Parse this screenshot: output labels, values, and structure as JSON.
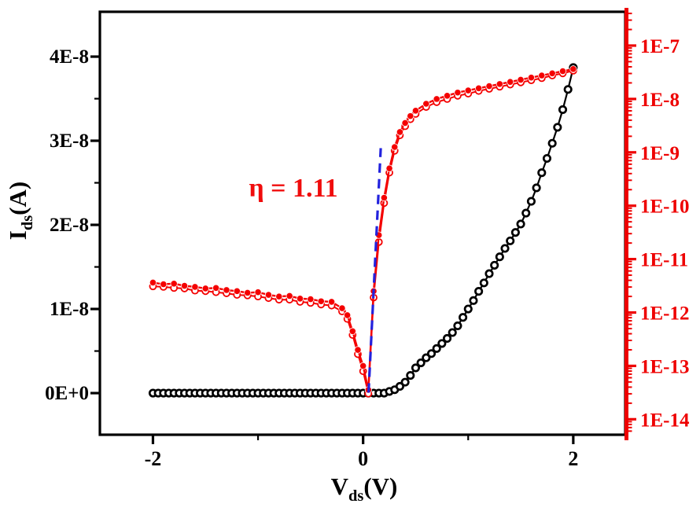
{
  "figure": {
    "background": "#ffffff"
  },
  "colors": {
    "frame": "#000000",
    "black_series": "#000000",
    "red_axis": "#ee0000",
    "red_series": "#f40000",
    "blue_fit": "#2222dd",
    "annotation_red": "#f00c0c"
  },
  "chart_data": {
    "type": "line",
    "title": "",
    "xlabel": {
      "pre": "V",
      "sub": "ds",
      "post": "(V)"
    },
    "ylabel_left": {
      "pre": "I",
      "sub": "ds",
      "post": "(A)"
    },
    "annotation": {
      "text": "η = 1.11"
    },
    "axes": {
      "x": {
        "range": [
          -2.505,
          2.495
        ],
        "major_ticks": [
          -2,
          0,
          2
        ],
        "major_labels": [
          "-2",
          "0",
          "2"
        ],
        "minor_ticks": [
          -1,
          1
        ]
      },
      "y_left": {
        "unit": "A (values in 1e-8)",
        "range": [
          -0.495,
          4.533
        ],
        "major_ticks": [
          0,
          1,
          2,
          3,
          4
        ],
        "major_labels": [
          "0E+0",
          "1E-8",
          "2E-8",
          "3E-8",
          "4E-8"
        ],
        "minor_ticks": [
          0.5,
          1.5,
          2.5,
          3.5
        ]
      },
      "y_right": {
        "scale": "log10",
        "unit": "A (log10 values)",
        "range": [
          -14.29,
          -6.367
        ],
        "major_ticks": [
          -7,
          -8,
          -9,
          -10,
          -11,
          -12,
          -13,
          -14
        ],
        "major_labels": [
          "1E-7",
          "1E-8",
          "1E-9",
          "1E-10",
          "1E-11",
          "1E-12",
          "1E-13",
          "1E-14"
        ],
        "minor_decades": [
          -15,
          -14,
          -13,
          -12,
          -11,
          -10,
          -9,
          -8,
          -7
        ]
      }
    },
    "series": [
      {
        "name": "Ids-linear-black",
        "axis": "left",
        "marker": "open-circle",
        "points": [
          [
            -2.0,
            0
          ],
          [
            -1.95,
            0
          ],
          [
            -1.9,
            0
          ],
          [
            -1.85,
            0
          ],
          [
            -1.8,
            0
          ],
          [
            -1.75,
            0
          ],
          [
            -1.7,
            0
          ],
          [
            -1.65,
            0
          ],
          [
            -1.6,
            0
          ],
          [
            -1.55,
            0
          ],
          [
            -1.5,
            0
          ],
          [
            -1.45,
            0
          ],
          [
            -1.4,
            0
          ],
          [
            -1.35,
            0
          ],
          [
            -1.3,
            0
          ],
          [
            -1.25,
            0
          ],
          [
            -1.2,
            0
          ],
          [
            -1.15,
            0
          ],
          [
            -1.1,
            0
          ],
          [
            -1.05,
            0
          ],
          [
            -1.0,
            0
          ],
          [
            -0.95,
            0
          ],
          [
            -0.9,
            0
          ],
          [
            -0.85,
            0
          ],
          [
            -0.8,
            0
          ],
          [
            -0.75,
            0
          ],
          [
            -0.7,
            0
          ],
          [
            -0.65,
            0
          ],
          [
            -0.6,
            0
          ],
          [
            -0.55,
            0
          ],
          [
            -0.5,
            0
          ],
          [
            -0.45,
            0
          ],
          [
            -0.4,
            0
          ],
          [
            -0.35,
            0
          ],
          [
            -0.3,
            0
          ],
          [
            -0.25,
            0
          ],
          [
            -0.2,
            0
          ],
          [
            -0.15,
            0
          ],
          [
            -0.1,
            0
          ],
          [
            -0.05,
            0
          ],
          [
            0.0,
            0
          ],
          [
            0.05,
            0
          ],
          [
            0.1,
            0
          ],
          [
            0.15,
            0
          ],
          [
            0.2,
            0
          ],
          [
            0.25,
            0.02
          ],
          [
            0.3,
            0.04
          ],
          [
            0.35,
            0.08
          ],
          [
            0.4,
            0.13
          ],
          [
            0.45,
            0.21
          ],
          [
            0.5,
            0.3
          ],
          [
            0.55,
            0.36
          ],
          [
            0.6,
            0.42
          ],
          [
            0.65,
            0.47
          ],
          [
            0.7,
            0.53
          ],
          [
            0.75,
            0.59
          ],
          [
            0.8,
            0.65
          ],
          [
            0.85,
            0.72
          ],
          [
            0.9,
            0.8
          ],
          [
            0.95,
            0.9
          ],
          [
            1.0,
            1.0
          ],
          [
            1.05,
            1.1
          ],
          [
            1.1,
            1.21
          ],
          [
            1.15,
            1.31
          ],
          [
            1.2,
            1.42
          ],
          [
            1.25,
            1.52
          ],
          [
            1.3,
            1.62
          ],
          [
            1.35,
            1.72
          ],
          [
            1.4,
            1.81
          ],
          [
            1.45,
            1.91
          ],
          [
            1.5,
            2.01
          ],
          [
            1.55,
            2.14
          ],
          [
            1.6,
            2.28
          ],
          [
            1.65,
            2.44
          ],
          [
            1.7,
            2.62
          ],
          [
            1.75,
            2.79
          ],
          [
            1.8,
            2.97
          ],
          [
            1.85,
            3.16
          ],
          [
            1.9,
            3.37
          ],
          [
            1.95,
            3.61
          ],
          [
            2.0,
            3.87
          ]
        ]
      },
      {
        "name": "abs-Ids-log-red-open",
        "axis": "right",
        "marker": "open-circle",
        "points": [
          [
            -2.0,
            -11.51
          ],
          [
            -1.9,
            -11.52
          ],
          [
            -1.8,
            -11.54
          ],
          [
            -1.7,
            -11.55
          ],
          [
            -1.6,
            -11.59
          ],
          [
            -1.5,
            -11.6
          ],
          [
            -1.4,
            -11.62
          ],
          [
            -1.3,
            -11.64
          ],
          [
            -1.2,
            -11.67
          ],
          [
            -1.1,
            -11.68
          ],
          [
            -1.0,
            -11.7
          ],
          [
            -0.9,
            -11.73
          ],
          [
            -0.8,
            -11.76
          ],
          [
            -0.7,
            -11.76
          ],
          [
            -0.6,
            -11.8
          ],
          [
            -0.5,
            -11.82
          ],
          [
            -0.4,
            -11.85
          ],
          [
            -0.3,
            -11.87
          ],
          [
            -0.2,
            -11.98
          ],
          [
            -0.15,
            -12.12
          ],
          [
            -0.1,
            -12.42
          ],
          [
            -0.05,
            -12.78
          ],
          [
            0.0,
            -13.1
          ],
          [
            0.05,
            -13.52
          ],
          [
            0.1,
            -11.72
          ],
          [
            0.15,
            -10.68
          ],
          [
            0.2,
            -9.95
          ],
          [
            0.25,
            -9.38
          ],
          [
            0.3,
            -8.97
          ],
          [
            0.35,
            -8.68
          ],
          [
            0.4,
            -8.51
          ],
          [
            0.45,
            -8.38
          ],
          [
            0.5,
            -8.28
          ],
          [
            0.6,
            -8.15
          ],
          [
            0.7,
            -8.06
          ],
          [
            0.8,
            -8.0
          ],
          [
            0.9,
            -7.94
          ],
          [
            1.0,
            -7.9
          ],
          [
            1.1,
            -7.85
          ],
          [
            1.2,
            -7.81
          ],
          [
            1.3,
            -7.77
          ],
          [
            1.4,
            -7.73
          ],
          [
            1.5,
            -7.69
          ],
          [
            1.6,
            -7.65
          ],
          [
            1.7,
            -7.61
          ],
          [
            1.8,
            -7.56
          ],
          [
            1.9,
            -7.52
          ],
          [
            2.0,
            -7.47
          ]
        ]
      },
      {
        "name": "abs-Ids-log-red-filled",
        "axis": "right",
        "marker": "filled-circle",
        "points": [
          [
            -2.0,
            -11.44
          ],
          [
            -1.9,
            -11.47
          ],
          [
            -1.8,
            -11.46
          ],
          [
            -1.7,
            -11.5
          ],
          [
            -1.6,
            -11.52
          ],
          [
            -1.5,
            -11.55
          ],
          [
            -1.4,
            -11.54
          ],
          [
            -1.3,
            -11.58
          ],
          [
            -1.2,
            -11.6
          ],
          [
            -1.1,
            -11.63
          ],
          [
            -1.0,
            -11.62
          ],
          [
            -0.9,
            -11.67
          ],
          [
            -0.8,
            -11.7
          ],
          [
            -0.7,
            -11.69
          ],
          [
            -0.6,
            -11.74
          ],
          [
            -0.5,
            -11.75
          ],
          [
            -0.4,
            -11.79
          ],
          [
            -0.3,
            -11.8
          ],
          [
            -0.2,
            -11.92
          ],
          [
            -0.15,
            -12.05
          ],
          [
            -0.1,
            -12.35
          ],
          [
            -0.05,
            -12.7
          ],
          [
            0.0,
            -13.0
          ],
          [
            0.05,
            -13.45
          ],
          [
            0.1,
            -11.6
          ],
          [
            0.15,
            -10.55
          ],
          [
            0.2,
            -9.85
          ],
          [
            0.25,
            -9.3
          ],
          [
            0.3,
            -8.9
          ],
          [
            0.35,
            -8.62
          ],
          [
            0.4,
            -8.45
          ],
          [
            0.45,
            -8.32
          ],
          [
            0.5,
            -8.22
          ],
          [
            0.6,
            -8.09
          ],
          [
            0.7,
            -8.0
          ],
          [
            0.8,
            -7.94
          ],
          [
            0.9,
            -7.88
          ],
          [
            1.0,
            -7.84
          ],
          [
            1.1,
            -7.8
          ],
          [
            1.2,
            -7.76
          ],
          [
            1.3,
            -7.72
          ],
          [
            1.4,
            -7.68
          ],
          [
            1.5,
            -7.64
          ],
          [
            1.6,
            -7.6
          ],
          [
            1.7,
            -7.56
          ],
          [
            1.8,
            -7.52
          ],
          [
            1.9,
            -7.48
          ],
          [
            2.0,
            -7.44
          ]
        ]
      },
      {
        "name": "ideality-fit-line",
        "axis": "right",
        "style": "dashed",
        "points": [
          [
            0.052,
            -13.5
          ],
          [
            0.168,
            -8.92
          ]
        ]
      }
    ]
  }
}
